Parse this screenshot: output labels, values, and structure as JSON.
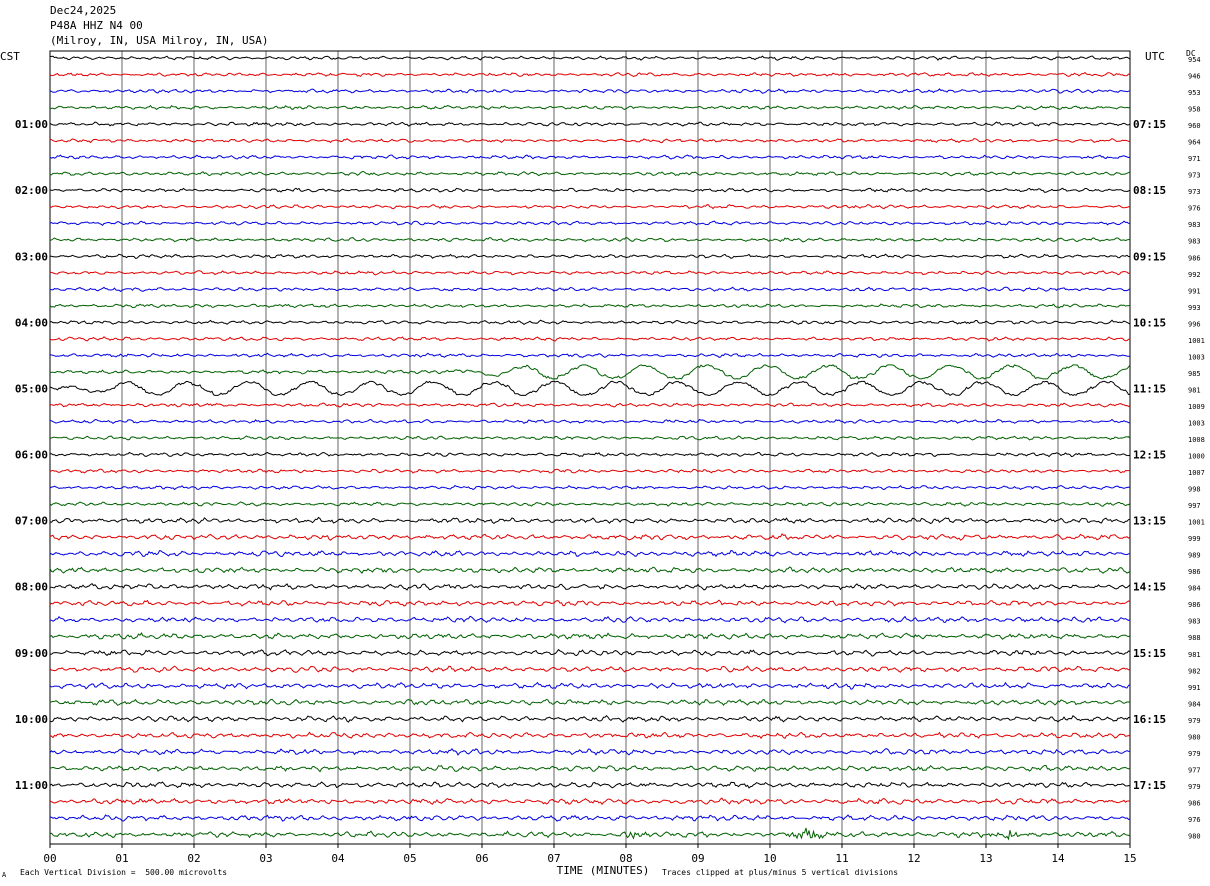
{
  "header": {
    "date": "Dec24,2025",
    "station": "P48A HHZ N4 00",
    "location": "(Milroy, IN, USA Milroy, IN, USA)"
  },
  "left_timezone": "CST",
  "right_timezone": "UTC",
  "dc_label": "DC",
  "footer": {
    "scale_note": "Each Vertical Division =  500.00 microvolts",
    "clip_note": "Traces clipped at plus/minus 5 vertical divisions",
    "corner_mark": "A"
  },
  "colors": {
    "cycle": [
      "#000000",
      "#e00000",
      "#0000e0",
      "#006000"
    ],
    "grid": "#000000"
  },
  "chart_data": {
    "type": "line",
    "title": "P48A HHZ N4 00",
    "xlabel": "TIME (MINUTES)",
    "x_ticks": [
      "00",
      "01",
      "02",
      "03",
      "04",
      "05",
      "06",
      "07",
      "08",
      "09",
      "10",
      "11",
      "12",
      "13",
      "14",
      "15"
    ],
    "x_range": [
      0,
      15
    ],
    "trace_count": 48,
    "traces_per_hour": 4,
    "left_hour_labels": [
      "01:00",
      "02:00",
      "03:00",
      "04:00",
      "05:00",
      "06:00",
      "07:00",
      "08:00",
      "09:00",
      "10:00",
      "11:00"
    ],
    "right_hour_labels": [
      "07:15",
      "08:15",
      "09:15",
      "10:15",
      "11:15",
      "12:15",
      "13:15",
      "14:15",
      "15:15",
      "16:15",
      "17:15"
    ],
    "dc_offsets": [
      954,
      946,
      953,
      958,
      960,
      964,
      971,
      973,
      973,
      976,
      983,
      983,
      986,
      992,
      991,
      993,
      996,
      1001,
      1003,
      985,
      981,
      1009,
      1003,
      1008,
      1000,
      1007,
      998,
      997,
      1001,
      999,
      989,
      986,
      984,
      986,
      983,
      988,
      981,
      982,
      991,
      984,
      979,
      980,
      979,
      977,
      979,
      986,
      976,
      980
    ],
    "notable_signals": [
      {
        "trace": 19,
        "description": "long-period oscillation (teleseismic surface waves)",
        "x_start": 5.5,
        "x_end": 15
      },
      {
        "trace": 20,
        "description": "long-period oscillation",
        "x_start": 0,
        "x_end": 15
      },
      {
        "trace": 47,
        "description": "local bursts",
        "x_bursts": [
          8.1,
          10.5,
          13.3
        ]
      }
    ]
  }
}
